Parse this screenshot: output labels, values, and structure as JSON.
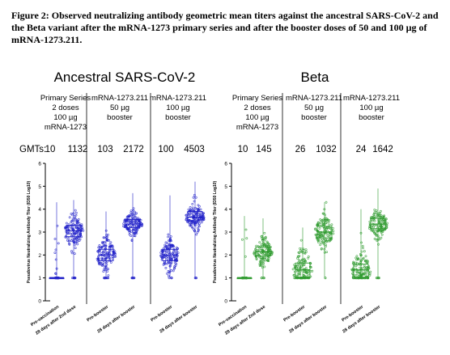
{
  "caption": "Figure 2: Observed neutralizing antibody geometric mean titers against the ancestral SARS-CoV-2 and the Beta variant after the mRNA-1273 primary series and after the booster doses of 50 and 100 µg of mRNA-1273.211.",
  "colors": {
    "ancestral": "#1f1fc8",
    "beta": "#2e9a2e",
    "axis": "#000000"
  },
  "chart_data": [
    {
      "type": "scatter",
      "title": "Ancestral SARS-CoV-2",
      "ylabel": "Pseudovirus Neutralizing Antibody Titer (ID50 Log10)",
      "ylim": [
        0,
        6
      ],
      "yticks": [
        "0",
        "1",
        "2",
        "3",
        "4",
        "5",
        "6"
      ],
      "groups": [
        {
          "header": [
            "Primary Series",
            "2 doses",
            "100 µg",
            "mRNA-1273"
          ],
          "gmts": [
            "10",
            "1132"
          ]
        },
        {
          "header": [
            "mRNA-1273.211",
            "50 µg",
            "booster"
          ],
          "gmts": [
            "103",
            "2172"
          ]
        },
        {
          "header": [
            "mRNA-1273.211",
            "100 µg",
            "booster"
          ],
          "gmts": [
            "100",
            "4503"
          ]
        }
      ],
      "categories": [
        "Pre-vaccination",
        "28 days after 2nd dose",
        "Pre-booster",
        "28 days after booster",
        "Pre-booster",
        "28 days after booster"
      ],
      "boxes": [
        {
          "q1": 1.0,
          "median": 1.0,
          "q3": 1.0,
          "min": 1.0,
          "max": 4.3
        },
        {
          "q1": 2.8,
          "median": 3.05,
          "q3": 3.3,
          "min": 1.0,
          "max": 4.4
        },
        {
          "q1": 1.75,
          "median": 2.0,
          "q3": 2.25,
          "min": 1.0,
          "max": 3.9
        },
        {
          "q1": 3.2,
          "median": 3.35,
          "q3": 3.55,
          "min": 1.0,
          "max": 4.7
        },
        {
          "q1": 1.75,
          "median": 2.0,
          "q3": 2.25,
          "min": 1.0,
          "max": 4.6
        },
        {
          "q1": 3.5,
          "median": 3.65,
          "q3": 3.9,
          "min": 1.0,
          "max": 5.2
        }
      ]
    },
    {
      "type": "scatter",
      "title": "Beta",
      "ylabel": "Pseudovirus Neutralizing Antibody Titer (ID50 Log10)",
      "ylim": [
        0,
        6
      ],
      "yticks": [
        "0",
        "1",
        "2",
        "3",
        "4",
        "5",
        "6"
      ],
      "groups": [
        {
          "header": [
            "Primary Series",
            "2 doses",
            "100 µg",
            "mRNA-1273"
          ],
          "gmts": [
            "10",
            "145"
          ]
        },
        {
          "header": [
            "mRNA-1273.211",
            "50 µg",
            "booster"
          ],
          "gmts": [
            "26",
            "1032"
          ]
        },
        {
          "header": [
            "mRNA-1273.211",
            "100 µg",
            "booster"
          ],
          "gmts": [
            "24",
            "1642"
          ]
        }
      ],
      "categories": [
        "Pre-vaccination",
        "28 days after 2nd dose",
        "Pre-booster",
        "28 days after booster",
        "Pre-booster",
        "28 days after booster"
      ],
      "boxes": [
        {
          "q1": 1.0,
          "median": 1.0,
          "q3": 1.0,
          "min": 1.0,
          "max": 3.7
        },
        {
          "q1": 1.95,
          "median": 2.15,
          "q3": 2.35,
          "min": 1.0,
          "max": 3.6
        },
        {
          "q1": 1.0,
          "median": 1.35,
          "q3": 1.65,
          "min": 1.0,
          "max": 3.2
        },
        {
          "q1": 2.75,
          "median": 3.0,
          "q3": 3.25,
          "min": 1.0,
          "max": 4.3
        },
        {
          "q1": 1.0,
          "median": 1.35,
          "q3": 1.6,
          "min": 1.0,
          "max": 4.0
        },
        {
          "q1": 3.15,
          "median": 3.35,
          "q3": 3.6,
          "min": 1.0,
          "max": 4.9
        }
      ]
    }
  ],
  "gmt_label": "GMTs:"
}
